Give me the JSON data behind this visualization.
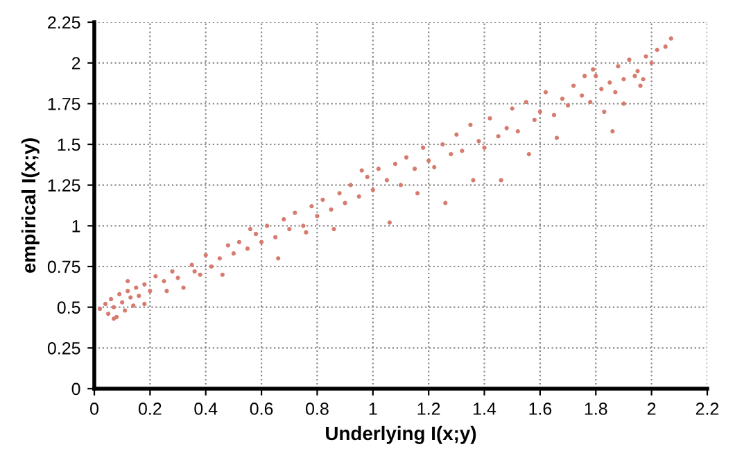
{
  "chart_data": {
    "type": "scatter",
    "xlabel": "Underlying I(x;y)",
    "ylabel": "empirical I(x;y)",
    "x": [
      0.02,
      0.04,
      0.05,
      0.06,
      0.07,
      0.08,
      0.09,
      0.1,
      0.11,
      0.12,
      0.13,
      0.14,
      0.15,
      0.16,
      0.18,
      0.2,
      0.22,
      0.25,
      0.28,
      0.3,
      0.32,
      0.35,
      0.38,
      0.4,
      0.42,
      0.45,
      0.48,
      0.5,
      0.52,
      0.55,
      0.58,
      0.6,
      0.62,
      0.65,
      0.68,
      0.7,
      0.72,
      0.75,
      0.78,
      0.8,
      0.82,
      0.85,
      0.88,
      0.9,
      0.92,
      0.95,
      0.98,
      1.0,
      1.02,
      1.05,
      1.08,
      1.1,
      1.12,
      1.15,
      1.18,
      1.2,
      1.22,
      1.25,
      1.28,
      1.3,
      1.32,
      1.35,
      1.38,
      1.4,
      1.42,
      1.45,
      1.48,
      1.5,
      1.52,
      1.55,
      1.58,
      1.6,
      1.62,
      1.65,
      1.68,
      1.7,
      1.72,
      1.75,
      1.78,
      1.8,
      1.82,
      1.85,
      1.88,
      1.9,
      1.92,
      1.95,
      1.98,
      2.0,
      2.02,
      2.05,
      2.07,
      0.07,
      0.12,
      0.18,
      0.26,
      0.36,
      0.46,
      0.56,
      0.66,
      0.76,
      0.86,
      0.96,
      1.06,
      1.16,
      1.26,
      1.36,
      1.46,
      1.56,
      1.66,
      1.76,
      1.86,
      1.96,
      1.83,
      1.9,
      1.97,
      1.79,
      1.87,
      1.94
    ],
    "values": [
      0.49,
      0.52,
      0.46,
      0.55,
      0.5,
      0.44,
      0.58,
      0.53,
      0.48,
      0.6,
      0.56,
      0.51,
      0.62,
      0.57,
      0.64,
      0.6,
      0.69,
      0.66,
      0.72,
      0.68,
      0.62,
      0.76,
      0.7,
      0.82,
      0.75,
      0.8,
      0.88,
      0.83,
      0.9,
      0.86,
      0.95,
      0.9,
      1.0,
      0.93,
      1.04,
      0.98,
      1.08,
      1.0,
      1.12,
      1.06,
      1.16,
      1.1,
      1.2,
      1.14,
      1.25,
      1.18,
      1.3,
      1.22,
      1.35,
      1.28,
      1.38,
      1.25,
      1.42,
      1.35,
      1.48,
      1.4,
      1.36,
      1.5,
      1.44,
      1.56,
      1.46,
      1.62,
      1.52,
      1.48,
      1.66,
      1.55,
      1.6,
      1.72,
      1.58,
      1.76,
      1.65,
      1.7,
      1.82,
      1.68,
      1.78,
      1.74,
      1.86,
      1.8,
      1.76,
      1.92,
      1.84,
      1.88,
      1.98,
      1.9,
      2.02,
      1.95,
      2.04,
      2.0,
      2.08,
      2.1,
      2.15,
      0.43,
      0.66,
      0.52,
      0.6,
      0.72,
      0.7,
      0.98,
      0.8,
      0.96,
      0.98,
      1.34,
      1.02,
      1.2,
      1.14,
      1.28,
      1.28,
      1.44,
      1.54,
      1.92,
      1.58,
      1.86,
      1.7,
      1.75,
      1.9,
      1.96,
      1.82,
      1.92
    ],
    "color": "#d67b6e",
    "marker": "circle",
    "grid": true,
    "xlim": [
      0,
      2.2
    ],
    "xticks": [
      0,
      0.2,
      0.4,
      0.6,
      0.8,
      1,
      1.2,
      1.4,
      1.6,
      1.8,
      2,
      2.2
    ],
    "ylim": [
      0,
      2.25
    ],
    "yticks": [
      0,
      0.25,
      0.5,
      0.75,
      1,
      1.25,
      1.5,
      1.75,
      2,
      2.25
    ]
  }
}
